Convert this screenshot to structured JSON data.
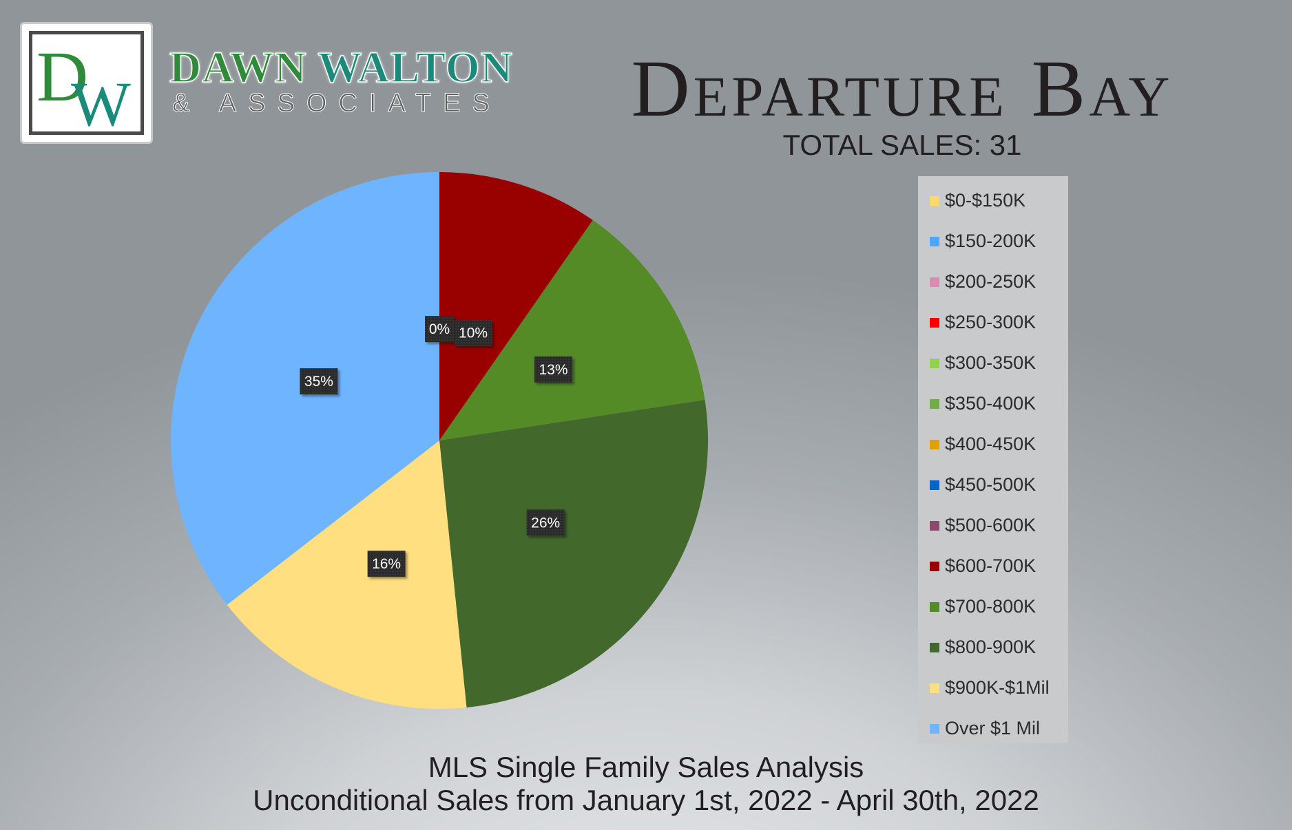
{
  "brand": {
    "logo_mark": "DW",
    "name_first": "DAWN",
    "name_second": "WALTON",
    "subtitle": "& ASSOCIATES",
    "name_color": "#2f8a3a",
    "accent_color": "#1a8a7a"
  },
  "title": "Departure Bay",
  "total_sales": "TOTAL SALES: 31",
  "footer": {
    "line1": "MLS Single Family Sales Analysis",
    "line2": "Unconditional Sales from January 1st, 2022 - April 30th, 2022"
  },
  "chart_data": {
    "type": "pie",
    "title": "",
    "start_angle": "12 o'clock, clockwise",
    "legend_placement": "right",
    "categories": [
      "$0-$150K",
      "$150-200K",
      "$200-250K",
      "$250-300K",
      "$300-350K",
      "$350-400K",
      "$400-450K",
      "$450-500K",
      "$500-600K",
      "$600-700K",
      "$700-800K",
      "$800-900K",
      "$900K-$1Mil",
      "Over $1 Mil"
    ],
    "colors": [
      "#ffd966",
      "#4da6ff",
      "#d98cb3",
      "#ff0000",
      "#92d050",
      "#70ad47",
      "#e0a000",
      "#0066cc",
      "#8b4a6b",
      "#990000",
      "#558b26",
      "#42682b",
      "#ffdf80",
      "#6eb4ff"
    ],
    "values": [
      0,
      0,
      0,
      0,
      0,
      0,
      0,
      0,
      0,
      3,
      4,
      8,
      5,
      11
    ],
    "data_labels": [
      "0%",
      "",
      "",
      "",
      "",
      "",
      "",
      "",
      "",
      "10%",
      "13%",
      "26%",
      "16%",
      "35%"
    ]
  }
}
